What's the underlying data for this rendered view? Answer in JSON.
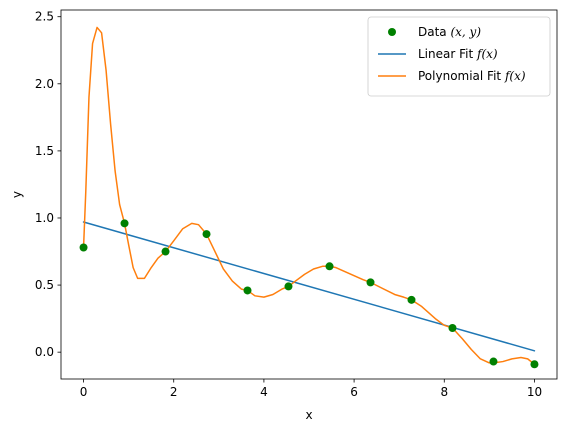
{
  "chart_data": {
    "type": "scatter",
    "xlabel": "x",
    "ylabel": "y",
    "xlim": [
      -0.5,
      10.5
    ],
    "ylim": [
      -0.2,
      2.55
    ],
    "xticks": [
      0,
      2,
      4,
      6,
      8,
      10
    ],
    "xtick_labels": [
      "0",
      "2",
      "4",
      "6",
      "8",
      "10"
    ],
    "yticks": [
      0.0,
      0.5,
      1.0,
      1.5,
      2.0,
      2.5
    ],
    "ytick_labels": [
      "0.0",
      "0.5",
      "1.0",
      "1.5",
      "2.0",
      "2.5"
    ],
    "grid": false,
    "legend_position": "top-right",
    "series": [
      {
        "name": "Data (x, y)",
        "legend_prefix": "Data ",
        "legend_math": "(x, y)",
        "legend_suffix": "",
        "kind": "scatter",
        "color": "#008000",
        "x": [
          0.0,
          0.909,
          1.818,
          2.727,
          3.636,
          4.545,
          5.455,
          6.364,
          7.273,
          8.182,
          9.091,
          10.0
        ],
        "y": [
          0.78,
          0.96,
          0.75,
          0.88,
          0.46,
          0.49,
          0.64,
          0.52,
          0.39,
          0.18,
          -0.07,
          -0.09
        ]
      },
      {
        "name": "Linear Fit f(x)",
        "legend_prefix": "Linear Fit ",
        "legend_math": "f(x)",
        "legend_suffix": "",
        "kind": "line",
        "color": "#1f77b4",
        "x": [
          0,
          10
        ],
        "y": [
          0.97,
          0.01
        ]
      },
      {
        "name": "Polynomial Fit f(x)",
        "legend_prefix": "Polynomial Fit ",
        "legend_math": "f(x)",
        "legend_suffix": "",
        "kind": "line",
        "color": "#ff7f0e",
        "x": [
          0.0,
          0.05,
          0.12,
          0.2,
          0.3,
          0.4,
          0.5,
          0.6,
          0.7,
          0.8,
          0.909,
          1.0,
          1.1,
          1.2,
          1.35,
          1.5,
          1.65,
          1.818,
          2.0,
          2.2,
          2.4,
          2.55,
          2.727,
          2.9,
          3.1,
          3.3,
          3.5,
          3.636,
          3.8,
          4.0,
          4.2,
          4.4,
          4.545,
          4.7,
          4.9,
          5.1,
          5.3,
          5.455,
          5.6,
          5.8,
          6.0,
          6.2,
          6.364,
          6.6,
          6.9,
          7.1,
          7.273,
          7.5,
          7.8,
          8.0,
          8.182,
          8.4,
          8.6,
          8.8,
          9.0,
          9.091,
          9.3,
          9.5,
          9.7,
          9.85,
          10.0
        ],
        "y": [
          0.78,
          1.2,
          1.9,
          2.3,
          2.42,
          2.38,
          2.1,
          1.7,
          1.35,
          1.1,
          0.96,
          0.8,
          0.63,
          0.55,
          0.55,
          0.63,
          0.7,
          0.75,
          0.83,
          0.92,
          0.96,
          0.95,
          0.88,
          0.76,
          0.62,
          0.53,
          0.47,
          0.46,
          0.42,
          0.41,
          0.43,
          0.47,
          0.49,
          0.53,
          0.58,
          0.62,
          0.64,
          0.64,
          0.63,
          0.6,
          0.57,
          0.54,
          0.52,
          0.48,
          0.43,
          0.41,
          0.39,
          0.34,
          0.25,
          0.2,
          0.18,
          0.1,
          0.02,
          -0.05,
          -0.08,
          -0.08,
          -0.07,
          -0.05,
          -0.04,
          -0.05,
          -0.09
        ]
      }
    ]
  }
}
